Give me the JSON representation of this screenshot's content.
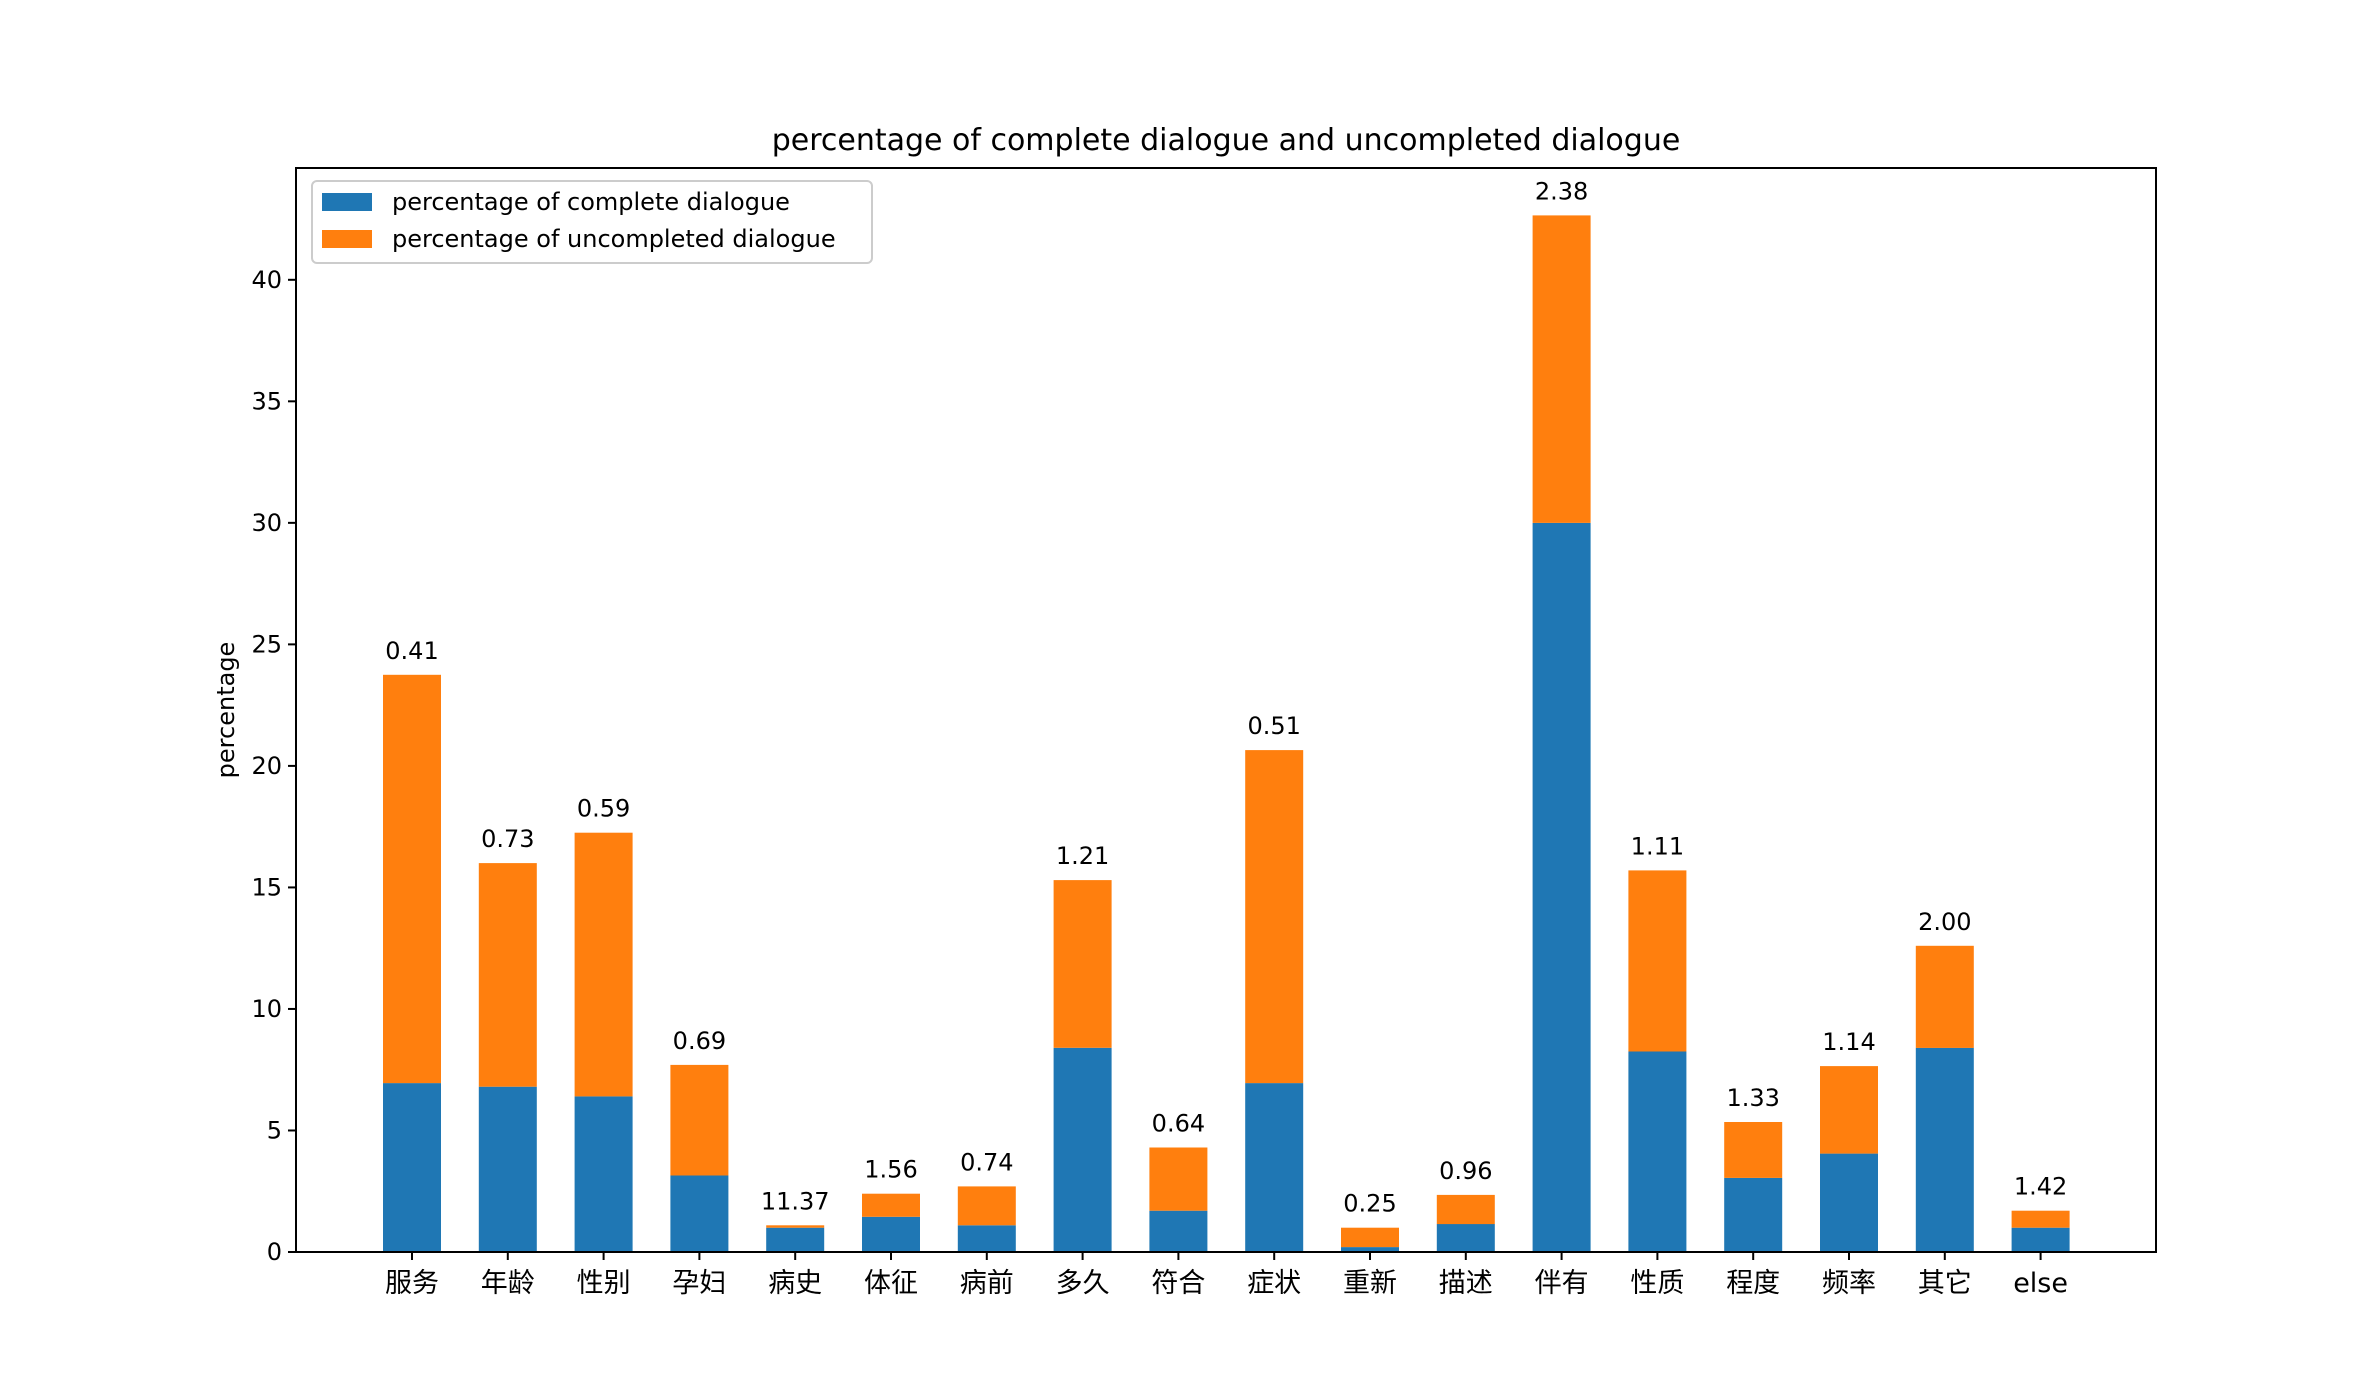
{
  "chart_data": {
    "type": "bar",
    "stacked": true,
    "title": "percentage of complete dialogue and uncompleted dialogue",
    "xlabel": "",
    "ylabel": "percentage",
    "ylim": [
      0,
      44.6
    ],
    "yticks": [
      0,
      5,
      10,
      15,
      20,
      25,
      30,
      35,
      40
    ],
    "grid": false,
    "legend": "top-left",
    "categories": [
      "服务",
      "年龄",
      "性别",
      "孕妇",
      "病史",
      "体征",
      "病前",
      "多久",
      "符合",
      "症状",
      "重新",
      "描述",
      "伴有",
      "性质",
      "程度",
      "频率",
      "其它",
      "else"
    ],
    "series": [
      {
        "name": "percentage of complete dialogue",
        "color": "#1f77b4",
        "values": [
          6.95,
          6.8,
          6.4,
          3.15,
          1.0,
          1.45,
          1.1,
          8.4,
          1.7,
          6.95,
          0.2,
          1.15,
          30.0,
          8.25,
          3.05,
          4.05,
          8.4,
          1.0
        ]
      },
      {
        "name": "percentage of uncompleted dialogue",
        "color": "#ff7f0e",
        "values": [
          16.8,
          9.2,
          10.85,
          4.55,
          0.1,
          0.95,
          1.6,
          6.9,
          2.6,
          13.7,
          0.8,
          1.2,
          12.65,
          7.45,
          2.3,
          3.6,
          4.2,
          0.7
        ]
      }
    ],
    "bar_labels": [
      "0.41",
      "0.73",
      "0.59",
      "0.69",
      "11.37",
      "1.56",
      "0.74",
      "1.21",
      "0.64",
      "0.51",
      "0.25",
      "0.96",
      "2.38",
      "1.11",
      "1.33",
      "1.14",
      "2.00",
      "1.42"
    ]
  }
}
